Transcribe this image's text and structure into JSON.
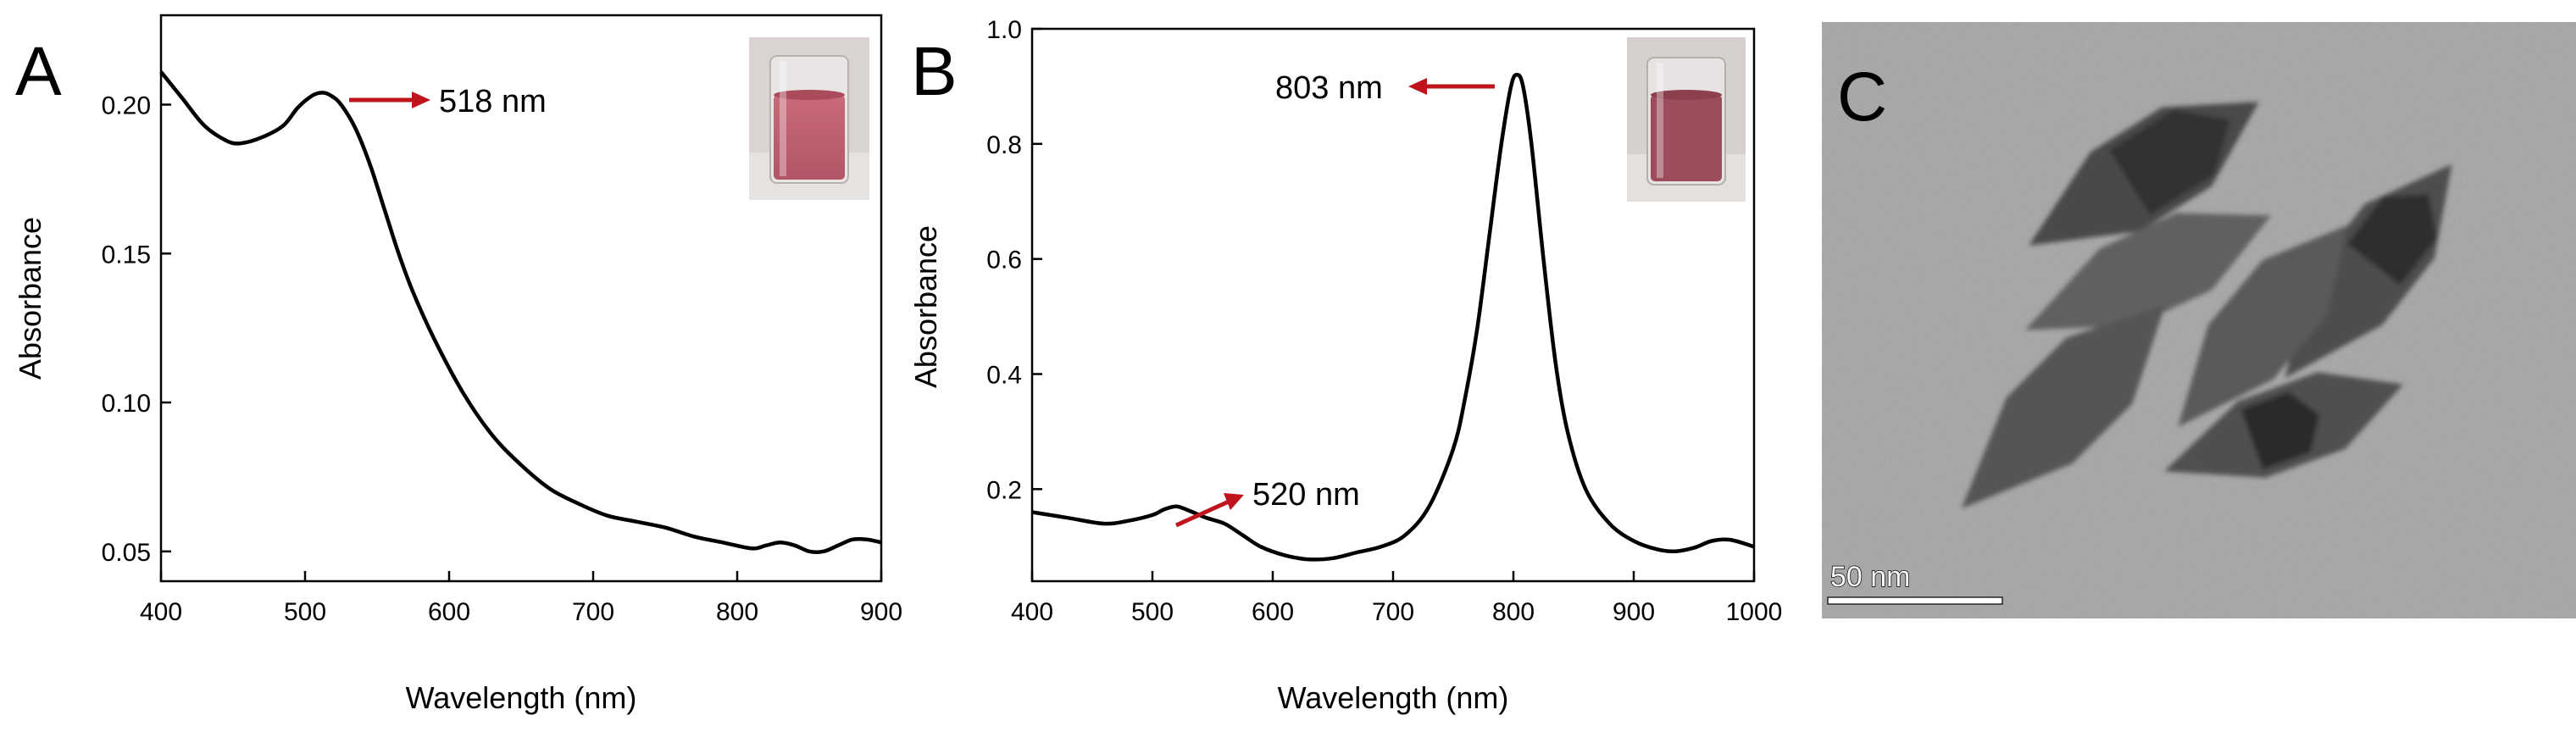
{
  "panels": [
    {
      "letter": "A"
    },
    {
      "letter": "B"
    },
    {
      "letter": "C"
    }
  ],
  "chart_data": [
    {
      "type": "line",
      "panel": "A",
      "xlabel": "Wavelength (nm)",
      "ylabel": "Absorbance",
      "xlim": [
        400,
        900
      ],
      "ylim": [
        0.04,
        0.23
      ],
      "xticks": [
        400,
        500,
        600,
        700,
        800,
        900
      ],
      "yticks": [
        0.05,
        0.1,
        0.15,
        0.2
      ],
      "ytick_labels": [
        "0.05",
        "0.10",
        "0.15",
        "0.20"
      ],
      "series": [
        {
          "name": "Absorbance",
          "x": [
            400,
            415,
            430,
            445,
            455,
            470,
            485,
            495,
            505,
            512,
            518,
            525,
            535,
            545,
            555,
            565,
            575,
            590,
            610,
            630,
            650,
            670,
            690,
            710,
            730,
            750,
            770,
            790,
            810,
            820,
            830,
            840,
            850,
            860,
            870,
            880,
            890,
            900
          ],
          "y": [
            0.211,
            0.202,
            0.193,
            0.188,
            0.187,
            0.189,
            0.193,
            0.199,
            0.203,
            0.204,
            0.203,
            0.2,
            0.192,
            0.18,
            0.165,
            0.15,
            0.137,
            0.121,
            0.103,
            0.089,
            0.079,
            0.071,
            0.066,
            0.062,
            0.06,
            0.058,
            0.055,
            0.053,
            0.051,
            0.052,
            0.053,
            0.052,
            0.05,
            0.05,
            0.052,
            0.054,
            0.054,
            0.053
          ]
        }
      ],
      "annotations": [
        {
          "text": "518 nm",
          "x": 518,
          "y": 0.204
        }
      ]
    },
    {
      "type": "line",
      "panel": "B",
      "xlabel": "Wavelength (nm)",
      "ylabel": "Absorbance",
      "xlim": [
        400,
        1000
      ],
      "ylim": [
        0.04,
        1.0
      ],
      "xticks": [
        400,
        500,
        600,
        700,
        800,
        900,
        1000
      ],
      "yticks": [
        0.2,
        0.4,
        0.6,
        0.8,
        1.0
      ],
      "ytick_labels": [
        "0.2",
        "0.4",
        "0.6",
        "0.8",
        "1.0"
      ],
      "series": [
        {
          "name": "Absorbance",
          "x": [
            400,
            430,
            460,
            480,
            500,
            510,
            520,
            530,
            545,
            560,
            575,
            590,
            610,
            630,
            650,
            670,
            690,
            710,
            730,
            750,
            760,
            770,
            780,
            790,
            798,
            803,
            808,
            815,
            825,
            835,
            845,
            860,
            880,
            900,
            920,
            935,
            950,
            965,
            980,
            1000
          ],
          "y": [
            0.16,
            0.15,
            0.14,
            0.145,
            0.155,
            0.165,
            0.17,
            0.163,
            0.15,
            0.14,
            0.12,
            0.1,
            0.085,
            0.078,
            0.08,
            0.09,
            0.1,
            0.12,
            0.17,
            0.27,
            0.36,
            0.48,
            0.64,
            0.8,
            0.9,
            0.92,
            0.9,
            0.8,
            0.6,
            0.42,
            0.3,
            0.2,
            0.14,
            0.11,
            0.095,
            0.092,
            0.098,
            0.11,
            0.112,
            0.1
          ]
        }
      ],
      "annotations": [
        {
          "text": "803 nm",
          "x": 803,
          "y": 0.92
        },
        {
          "text": "520 nm",
          "x": 520,
          "y": 0.17
        }
      ]
    }
  ],
  "image_panel": {
    "scale_bar_label": "50 nm"
  },
  "colors": {
    "arrow": "#c0141c",
    "curve": "#000000",
    "tem_background": "#a3a3a3"
  }
}
